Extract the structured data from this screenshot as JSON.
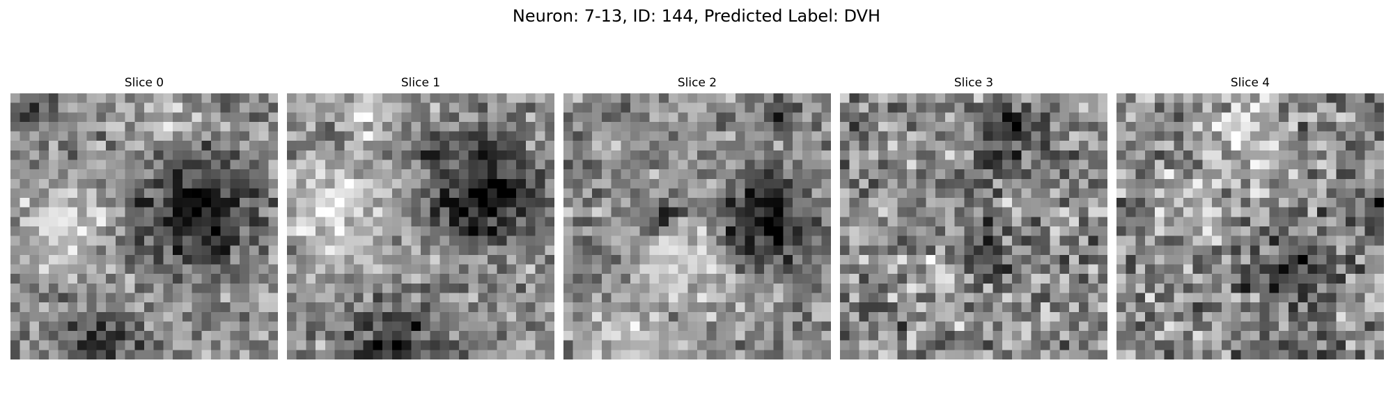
{
  "figure": {
    "title": "Neuron: 7-13, ID: 144, Predicted Label: DVH"
  },
  "panels": [
    {
      "title": "Slice 0"
    },
    {
      "title": "Slice 1"
    },
    {
      "title": "Slice 2"
    },
    {
      "title": "Slice 3"
    },
    {
      "title": "Slice 4"
    }
  ],
  "colormap": "gray"
}
